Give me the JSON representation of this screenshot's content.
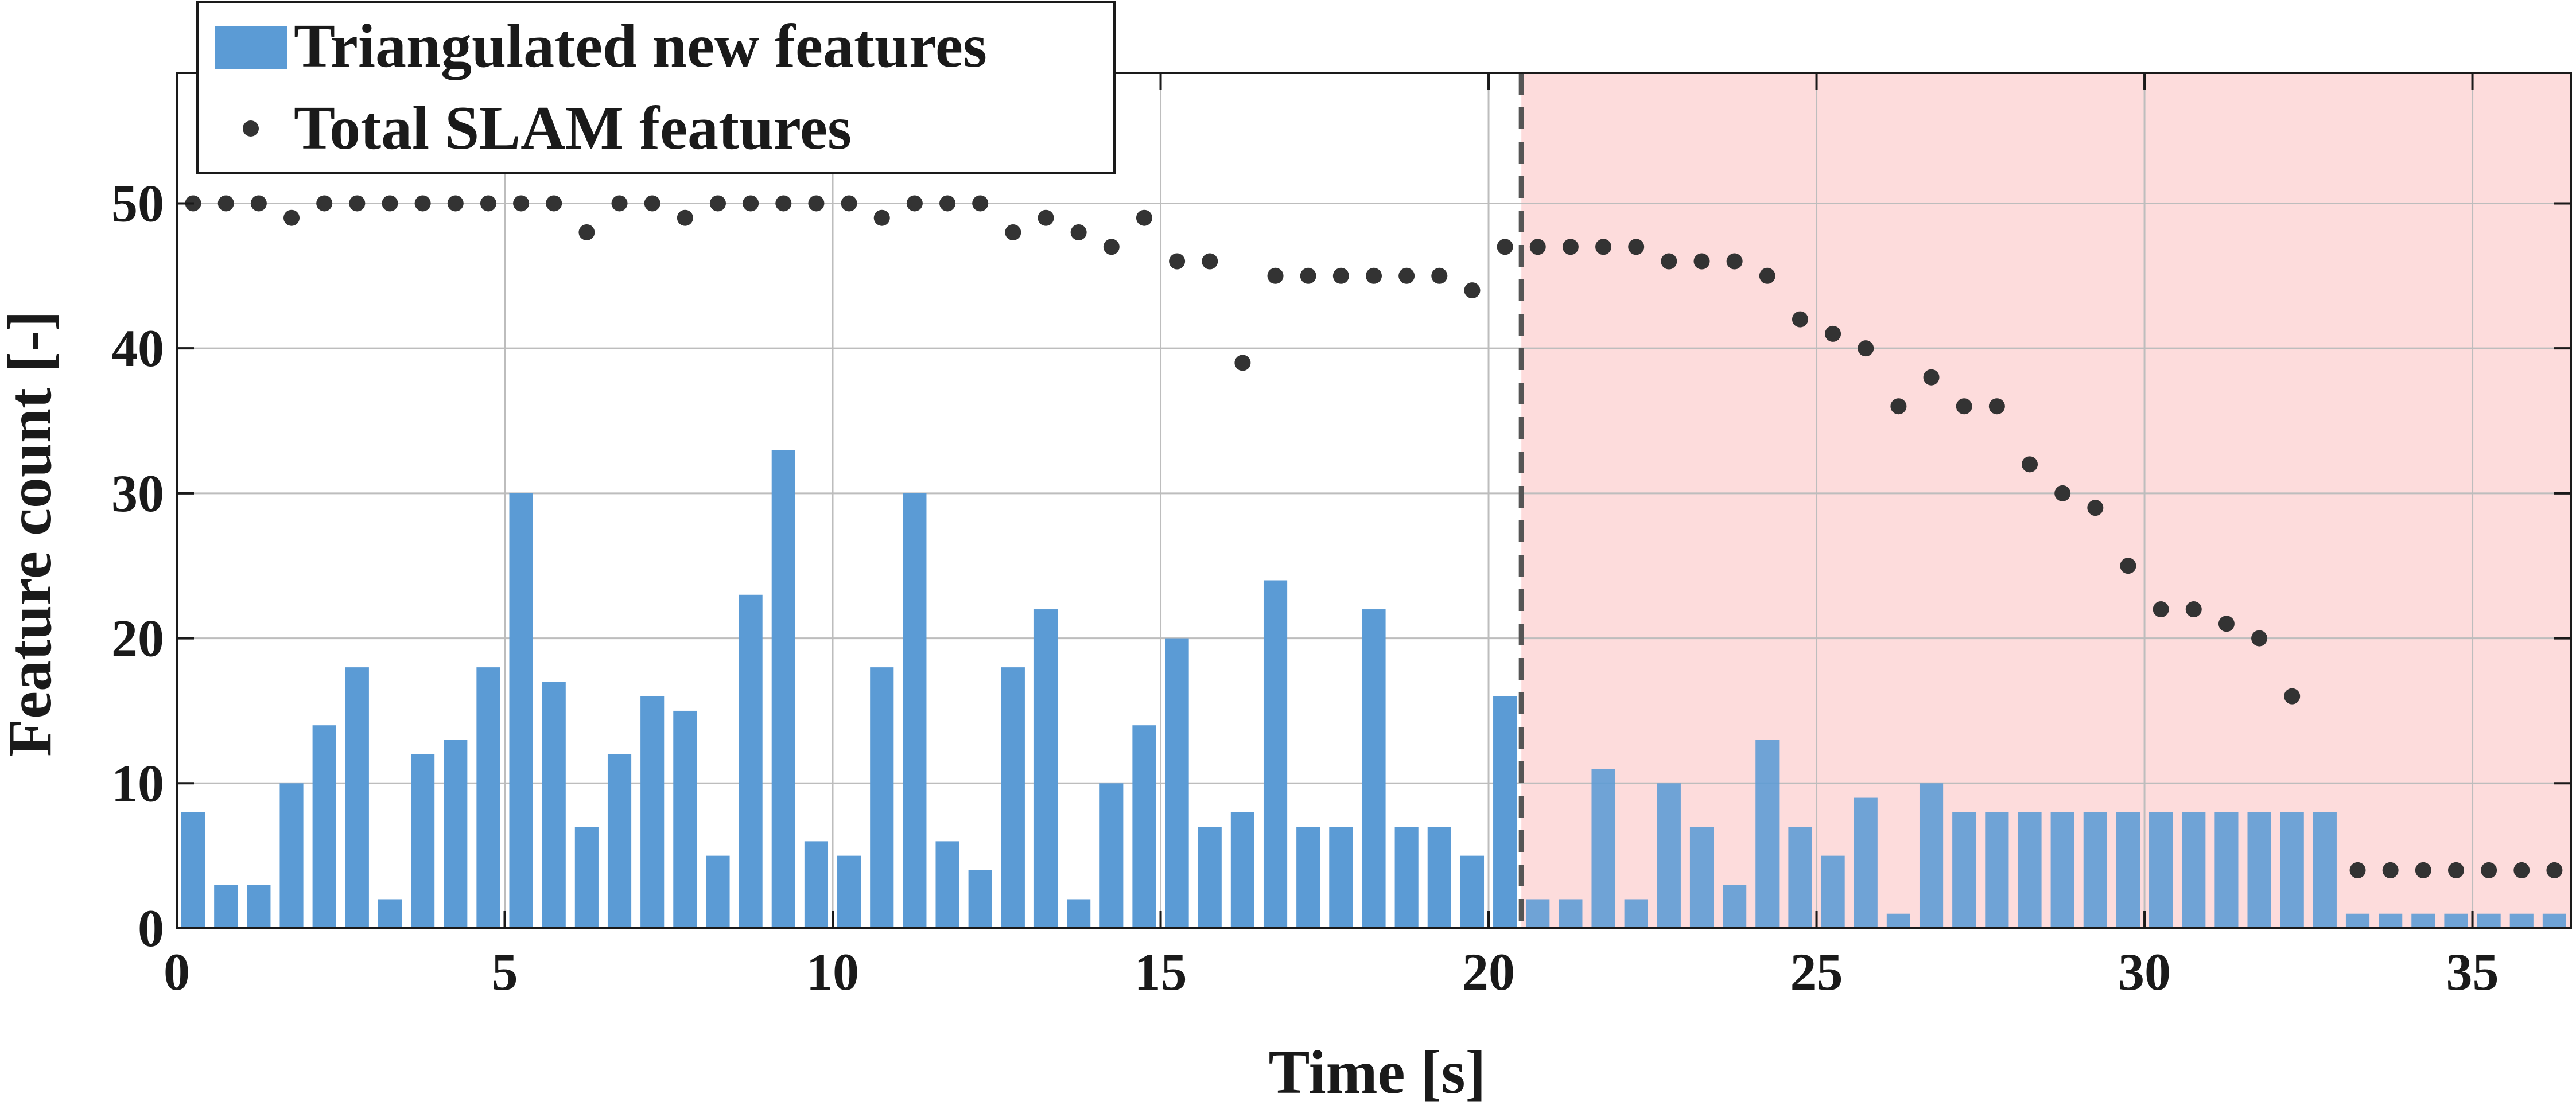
{
  "chart_data": {
    "type": "bar",
    "xlabel": "Time [s]",
    "ylabel": "Feature count [-]",
    "xlim": [
      0,
      36.5
    ],
    "ylim": [
      0,
      59
    ],
    "xticks": [
      0,
      5,
      10,
      15,
      20,
      25,
      30,
      35
    ],
    "yticks": [
      0,
      10,
      20,
      30,
      40,
      50
    ],
    "grid": true,
    "legend_position": "top-left",
    "highlight_region": {
      "x_start": 20.5,
      "x_end": 36.5,
      "color": "#fddcdc"
    },
    "divider_line": {
      "x": 20.5
    },
    "x": [
      0.25,
      0.75,
      1.25,
      1.75,
      2.25,
      2.75,
      3.25,
      3.75,
      4.25,
      4.75,
      5.25,
      5.75,
      6.25,
      6.75,
      7.25,
      7.75,
      8.25,
      8.75,
      9.25,
      9.75,
      10.25,
      10.75,
      11.25,
      11.75,
      12.25,
      12.75,
      13.25,
      13.75,
      14.25,
      14.75,
      15.25,
      15.75,
      16.25,
      16.75,
      17.25,
      17.75,
      18.25,
      18.75,
      19.25,
      19.75,
      20.25,
      20.75,
      21.25,
      21.75,
      22.25,
      22.75,
      23.25,
      23.75,
      24.25,
      24.75,
      25.25,
      25.75,
      26.25,
      26.75,
      27.25,
      27.75,
      28.25,
      28.75,
      29.25,
      29.75,
      30.25,
      30.75,
      31.25,
      31.75,
      32.25,
      32.75,
      33.25,
      33.75,
      34.25,
      34.75,
      35.25,
      35.75,
      36.25
    ],
    "series": [
      {
        "name": "Triangulated new features",
        "kind": "bar",
        "color": "#5b9bd5",
        "values": [
          8,
          3,
          3,
          10,
          14,
          18,
          2,
          12,
          13,
          18,
          30,
          17,
          7,
          12,
          16,
          15,
          5,
          23,
          33,
          6,
          5,
          18,
          30,
          6,
          4,
          18,
          22,
          2,
          10,
          14,
          20,
          7,
          8,
          24,
          7,
          7,
          22,
          7,
          7,
          5,
          16,
          2,
          2,
          11,
          2,
          10,
          7,
          3,
          13,
          7,
          5,
          9,
          1,
          10,
          8,
          8,
          8,
          8,
          8,
          8,
          8,
          8,
          8,
          8,
          8,
          8,
          1,
          1,
          1,
          1,
          1,
          1,
          1
        ]
      },
      {
        "name": "Total SLAM features",
        "kind": "scatter",
        "color": "#333333",
        "values": [
          50,
          50,
          50,
          49,
          50,
          50,
          50,
          50,
          50,
          50,
          50,
          50,
          48,
          50,
          50,
          49,
          50,
          50,
          50,
          50,
          50,
          49,
          50,
          50,
          50,
          48,
          49,
          48,
          47,
          49,
          46,
          46,
          39,
          45,
          45,
          45,
          45,
          45,
          45,
          44,
          47,
          47,
          47,
          47,
          47,
          46,
          46,
          46,
          45,
          42,
          41,
          40,
          36,
          38,
          36,
          36,
          32,
          30,
          29,
          25,
          22,
          22,
          21,
          20,
          16,
          null,
          4,
          4,
          4,
          4,
          4,
          4,
          4
        ]
      }
    ]
  }
}
